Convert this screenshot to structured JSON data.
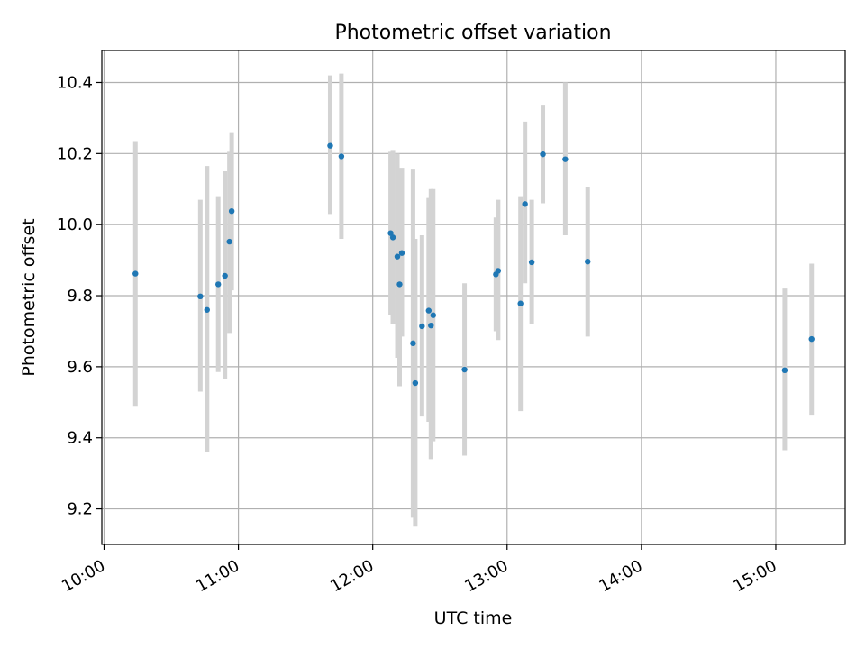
{
  "chart_data": {
    "type": "scatter",
    "title": "Photometric offset variation",
    "xlabel": "UTC time",
    "ylabel": "Photometric offset",
    "x_ticks": [
      "10:00",
      "11:00",
      "12:00",
      "13:00",
      "14:00",
      "15:00"
    ],
    "y_ticks": [
      "9.2",
      "9.4",
      "9.6",
      "9.8",
      "10.0",
      "10.2",
      "10.4"
    ],
    "xlim": [
      "09:59",
      "15:31"
    ],
    "ylim": [
      9.1,
      10.49
    ],
    "grid": true,
    "colors": {
      "point": "#1f77b4",
      "errorbar": "#d3d3d3",
      "grid": "#b0b0b0"
    },
    "points": [
      {
        "x": "10:14",
        "y": 9.862,
        "lo": 9.49,
        "hi": 10.235
      },
      {
        "x": "10:43",
        "y": 9.798,
        "lo": 9.53,
        "hi": 10.07
      },
      {
        "x": "10:46",
        "y": 9.76,
        "lo": 9.36,
        "hi": 10.165
      },
      {
        "x": "10:51",
        "y": 9.832,
        "lo": 9.585,
        "hi": 10.08
      },
      {
        "x": "10:54",
        "y": 9.856,
        "lo": 9.565,
        "hi": 10.15
      },
      {
        "x": "10:56",
        "y": 9.952,
        "lo": 9.695,
        "hi": 10.205
      },
      {
        "x": "10:57",
        "y": 10.038,
        "lo": 9.815,
        "hi": 10.26
      },
      {
        "x": "11:41",
        "y": 10.222,
        "lo": 10.03,
        "hi": 10.42
      },
      {
        "x": "11:46",
        "y": 10.192,
        "lo": 9.96,
        "hi": 10.425
      },
      {
        "x": "12:08",
        "y": 9.976,
        "lo": 9.745,
        "hi": 10.205
      },
      {
        "x": "12:09",
        "y": 9.964,
        "lo": 9.72,
        "hi": 10.21
      },
      {
        "x": "12:11",
        "y": 9.91,
        "lo": 9.625,
        "hi": 10.2
      },
      {
        "x": "12:12",
        "y": 9.832,
        "lo": 9.545,
        "hi": 10.12
      },
      {
        "x": "12:13",
        "y": 9.92,
        "lo": 9.685,
        "hi": 10.16
      },
      {
        "x": "12:18",
        "y": 9.666,
        "lo": 9.175,
        "hi": 10.155
      },
      {
        "x": "12:19",
        "y": 9.554,
        "lo": 9.15,
        "hi": 9.96
      },
      {
        "x": "12:22",
        "y": 9.714,
        "lo": 9.46,
        "hi": 9.97
      },
      {
        "x": "12:25",
        "y": 9.758,
        "lo": 9.445,
        "hi": 10.075
      },
      {
        "x": "12:26",
        "y": 9.716,
        "lo": 9.34,
        "hi": 10.1
      },
      {
        "x": "12:27",
        "y": 9.745,
        "lo": 9.39,
        "hi": 10.1
      },
      {
        "x": "12:41",
        "y": 9.592,
        "lo": 9.35,
        "hi": 9.835
      },
      {
        "x": "12:55",
        "y": 9.86,
        "lo": 9.7,
        "hi": 10.02
      },
      {
        "x": "12:56",
        "y": 9.87,
        "lo": 9.675,
        "hi": 10.07
      },
      {
        "x": "13:06",
        "y": 9.778,
        "lo": 9.475,
        "hi": 10.08
      },
      {
        "x": "13:08",
        "y": 10.058,
        "lo": 9.835,
        "hi": 10.29
      },
      {
        "x": "13:11",
        "y": 9.894,
        "lo": 9.72,
        "hi": 10.07
      },
      {
        "x": "13:16",
        "y": 10.198,
        "lo": 10.06,
        "hi": 10.335
      },
      {
        "x": "13:26",
        "y": 10.184,
        "lo": 9.97,
        "hi": 10.4
      },
      {
        "x": "13:36",
        "y": 9.896,
        "lo": 9.685,
        "hi": 10.105
      },
      {
        "x": "15:04",
        "y": 9.59,
        "lo": 9.365,
        "hi": 9.82
      },
      {
        "x": "15:16",
        "y": 9.678,
        "lo": 9.465,
        "hi": 9.89
      }
    ]
  }
}
